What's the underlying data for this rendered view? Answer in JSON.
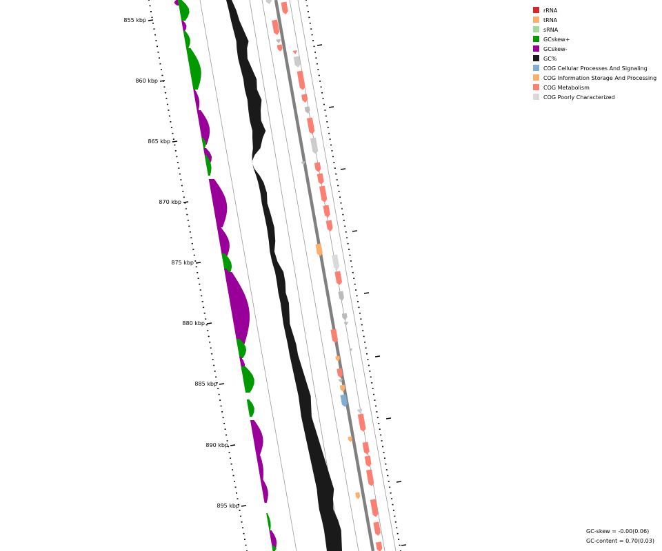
{
  "ticks": [
    {
      "label": "855 kbp"
    },
    {
      "label": "860 kbp"
    },
    {
      "label": "865 kbp"
    },
    {
      "label": "870 kbp"
    },
    {
      "label": "875 kbp"
    },
    {
      "label": "880 kbp"
    },
    {
      "label": "885 kbp"
    },
    {
      "label": "890 kbp"
    },
    {
      "label": "895 kbp"
    }
  ],
  "legend": [
    {
      "label": "rRNA",
      "color": "#d62728"
    },
    {
      "label": "tRNA",
      "color": "#fdae6b"
    },
    {
      "label": "sRNA",
      "color": "#a1d99b"
    },
    {
      "label": "GCskew+",
      "color": "#009900"
    },
    {
      "label": "GCskew-",
      "color": "#990099"
    },
    {
      "label": "GC%",
      "color": "#1a1a1a"
    },
    {
      "label": "COG Cellular Processes And Signaling",
      "color": "#7fadd4"
    },
    {
      "label": "COG Information Storage And Processing",
      "color": "#fdae6b"
    },
    {
      "label": "COG Metabolism",
      "color": "#fb8072"
    },
    {
      "label": "COG Poorly Characterized",
      "color": "#d9d9d9"
    }
  ],
  "stats": {
    "gc_skew": "GC-skew = -0.00(0.06)",
    "gc_content": "GC-content = 0.70(0.03)"
  }
}
